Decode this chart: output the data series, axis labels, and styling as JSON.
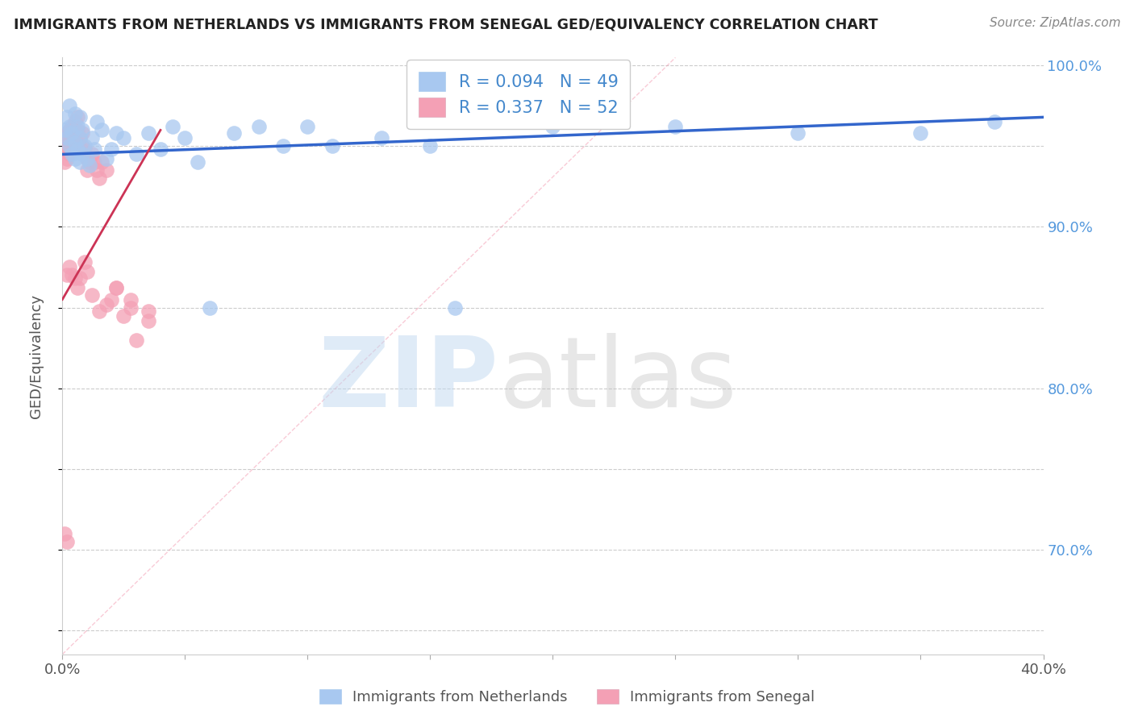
{
  "title": "IMMIGRANTS FROM NETHERLANDS VS IMMIGRANTS FROM SENEGAL GED/EQUIVALENCY CORRELATION CHART",
  "source": "Source: ZipAtlas.com",
  "ylabel": "GED/Equivalency",
  "xlim": [
    0.0,
    0.4
  ],
  "ylim": [
    0.635,
    1.005
  ],
  "legend_netherlands": "R = 0.094   N = 49",
  "legend_senegal": "R = 0.337   N = 52",
  "legend_label1": "Immigrants from Netherlands",
  "legend_label2": "Immigrants from Senegal",
  "netherlands_color": "#A8C8F0",
  "senegal_color": "#F4A0B5",
  "netherlands_line_color": "#3366CC",
  "senegal_line_color": "#CC3355",
  "ref_line_color": "#F4A0B5",
  "background_color": "#FFFFFF",
  "nl_x": [
    0.001,
    0.002,
    0.002,
    0.003,
    0.003,
    0.004,
    0.004,
    0.005,
    0.005,
    0.006,
    0.006,
    0.007,
    0.007,
    0.008,
    0.008,
    0.009,
    0.01,
    0.011,
    0.012,
    0.013,
    0.014,
    0.016,
    0.018,
    0.02,
    0.022,
    0.025,
    0.03,
    0.035,
    0.04,
    0.045,
    0.05,
    0.055,
    0.06,
    0.07,
    0.08,
    0.09,
    0.1,
    0.11,
    0.13,
    0.15,
    0.16,
    0.2,
    0.25,
    0.3,
    0.35,
    0.38,
    0.003,
    0.005,
    0.007
  ],
  "nl_y": [
    0.96,
    0.955,
    0.968,
    0.95,
    0.962,
    0.945,
    0.958,
    0.942,
    0.952,
    0.948,
    0.962,
    0.94,
    0.955,
    0.945,
    0.96,
    0.95,
    0.942,
    0.938,
    0.955,
    0.948,
    0.965,
    0.96,
    0.942,
    0.948,
    0.958,
    0.955,
    0.945,
    0.958,
    0.948,
    0.962,
    0.955,
    0.94,
    0.85,
    0.958,
    0.962,
    0.95,
    0.962,
    0.95,
    0.955,
    0.95,
    0.85,
    0.962,
    0.962,
    0.958,
    0.958,
    0.965,
    0.975,
    0.97,
    0.968
  ],
  "sn_x": [
    0.001,
    0.001,
    0.001,
    0.002,
    0.002,
    0.002,
    0.003,
    0.003,
    0.003,
    0.004,
    0.004,
    0.005,
    0.005,
    0.005,
    0.006,
    0.006,
    0.007,
    0.007,
    0.008,
    0.008,
    0.009,
    0.01,
    0.01,
    0.011,
    0.012,
    0.013,
    0.014,
    0.015,
    0.016,
    0.018,
    0.02,
    0.022,
    0.025,
    0.028,
    0.03,
    0.035,
    0.002,
    0.003,
    0.004,
    0.005,
    0.006,
    0.007,
    0.009,
    0.01,
    0.012,
    0.015,
    0.018,
    0.022,
    0.028,
    0.035,
    0.001,
    0.002
  ],
  "sn_y": [
    0.955,
    0.948,
    0.94,
    0.958,
    0.95,
    0.942,
    0.96,
    0.952,
    0.945,
    0.962,
    0.955,
    0.965,
    0.958,
    0.95,
    0.968,
    0.96,
    0.955,
    0.948,
    0.958,
    0.95,
    0.948,
    0.942,
    0.935,
    0.94,
    0.945,
    0.94,
    0.935,
    0.93,
    0.94,
    0.935,
    0.855,
    0.862,
    0.845,
    0.855,
    0.83,
    0.848,
    0.87,
    0.875,
    0.87,
    0.868,
    0.862,
    0.868,
    0.878,
    0.872,
    0.858,
    0.848,
    0.852,
    0.862,
    0.85,
    0.842,
    0.71,
    0.705
  ],
  "nl_trend_x": [
    0.0,
    0.4
  ],
  "nl_trend_y": [
    0.945,
    0.968
  ],
  "sn_trend_x": [
    0.0,
    0.04
  ],
  "sn_trend_y": [
    0.855,
    0.96
  ],
  "ref_line_x": [
    0.0,
    0.25
  ],
  "ref_line_y": [
    0.635,
    1.005
  ],
  "ytick_positions": [
    0.65,
    0.7,
    0.75,
    0.8,
    0.85,
    0.9,
    0.95,
    1.0
  ],
  "ytick_labels_right": [
    "",
    "70.0%",
    "",
    "80.0%",
    "",
    "90.0%",
    "",
    "100.0%"
  ]
}
